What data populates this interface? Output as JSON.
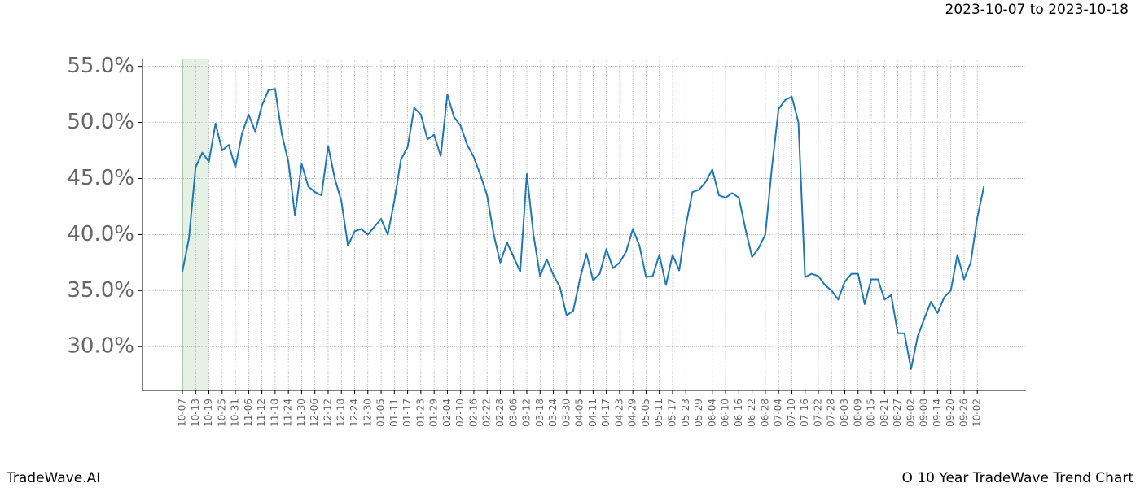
{
  "chart_data": {
    "type": "line",
    "title": "2023-10-07 to 2023-10-18",
    "footer_left": "TradeWave.AI",
    "footer_right": "O 10 Year TradeWave Trend Chart",
    "categories": [
      "10-07",
      null,
      "10-13",
      null,
      "10-19",
      null,
      "10-25",
      null,
      "10-31",
      null,
      "11-06",
      null,
      "11-12",
      null,
      "11-18",
      null,
      "11-24",
      null,
      "11-30",
      null,
      "12-06",
      null,
      "12-12",
      null,
      "12-18",
      null,
      "12-24",
      null,
      "12-30",
      null,
      "01-05",
      null,
      "01-11",
      null,
      "01-17",
      null,
      "01-23",
      null,
      "01-29",
      null,
      "02-04",
      null,
      "02-10",
      null,
      "02-16",
      null,
      "02-22",
      null,
      "02-28",
      null,
      "03-06",
      null,
      "03-12",
      null,
      "03-18",
      null,
      "03-24",
      null,
      "03-30",
      null,
      "04-05",
      null,
      "04-11",
      null,
      "04-17",
      null,
      "04-23",
      null,
      "04-29",
      null,
      "05-05",
      null,
      "05-11",
      null,
      "05-17",
      null,
      "05-23",
      null,
      "05-29",
      null,
      "06-04",
      null,
      "06-10",
      null,
      "06-16",
      null,
      "06-22",
      null,
      "06-28",
      null,
      "07-04",
      null,
      "07-10",
      null,
      "07-16",
      null,
      "07-22",
      null,
      "07-28",
      null,
      "08-03",
      null,
      "08-09",
      null,
      "08-15",
      null,
      "08-21",
      null,
      "08-27",
      null,
      "09-02",
      null,
      "09-08",
      null,
      "09-14",
      null,
      "09-20",
      null,
      "09-26",
      null,
      "10-02",
      null
    ],
    "series": [
      {
        "color": "#1f77b4",
        "values": [
          36.7,
          39.7,
          46.0,
          47.3,
          46.5,
          49.9,
          47.5,
          48.0,
          46.0,
          49.0,
          50.7,
          49.2,
          51.5,
          52.9,
          53.0,
          49.0,
          46.5,
          41.7,
          46.3,
          44.3,
          43.8,
          43.5,
          47.9,
          45.0,
          43.0,
          39.0,
          40.3,
          40.5,
          40.0,
          40.7,
          41.4,
          40.0,
          43.0,
          46.7,
          47.8,
          51.3,
          50.7,
          48.5,
          48.9,
          47.0,
          52.5,
          50.5,
          49.7,
          48.0,
          46.9,
          45.3,
          43.5,
          40.0,
          37.5,
          39.3,
          38.0,
          36.7,
          45.4,
          40.0,
          36.3,
          37.8,
          36.4,
          35.3,
          32.8,
          33.2,
          36.0,
          38.3,
          35.9,
          36.5,
          38.7,
          37.0,
          37.5,
          38.5,
          40.5,
          39.0,
          36.2,
          36.3,
          38.2,
          35.5,
          38.2,
          36.8,
          40.8,
          43.8,
          44.0,
          44.7,
          45.8,
          43.5,
          43.3,
          43.7,
          43.3,
          40.5,
          38.0,
          38.8,
          40.0,
          46.0,
          51.2,
          52.0,
          52.3,
          50.0,
          36.2,
          36.5,
          36.3,
          35.5,
          35.0,
          34.2,
          35.8,
          36.5,
          36.5,
          33.8,
          36.0,
          36.0,
          34.2,
          34.6,
          31.2,
          31.2,
          28.0,
          30.9,
          32.5,
          34.0,
          33.0,
          34.4,
          35.0,
          38.2,
          36.0,
          37.5,
          41.5,
          44.3
        ]
      }
    ],
    "ylim": [
      26.1,
      55.7
    ],
    "yticks": [
      {
        "value": 30,
        "label": "30.0%"
      },
      {
        "value": 35,
        "label": "35.0%"
      },
      {
        "value": 40,
        "label": "40.0%"
      },
      {
        "value": 45,
        "label": "45.0%"
      },
      {
        "value": 50,
        "label": "50.0%"
      },
      {
        "value": 55,
        "label": "55.0%"
      }
    ],
    "highlight": [
      "10-07",
      "10-19"
    ],
    "highlight_color": "#d5e8d4",
    "grid": true
  }
}
